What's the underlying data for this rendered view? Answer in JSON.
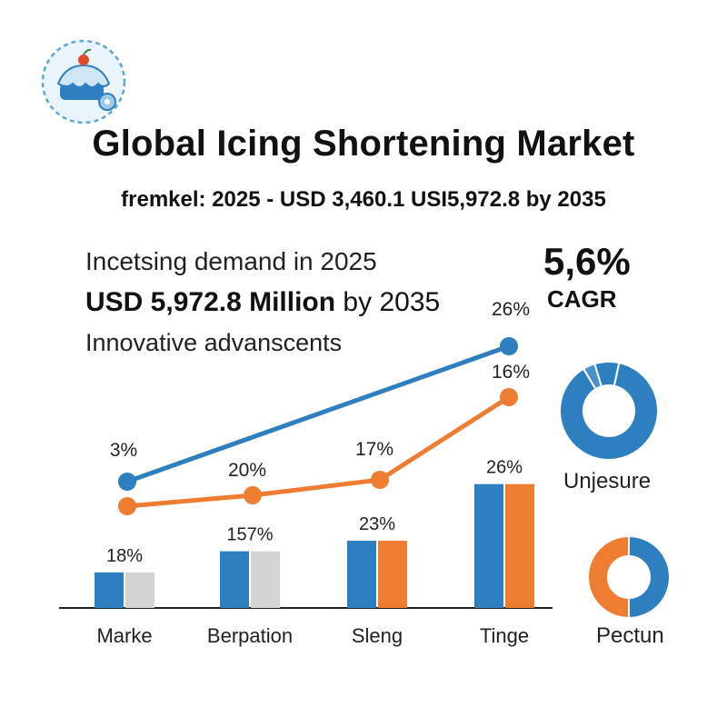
{
  "header": {
    "title": "Global Icing Shortening Market",
    "subtitle": "fremkel: 2025 - USD 3,460.1 USI5,972.8 by 2035"
  },
  "highlights": {
    "line1": "Incetsing demand in 2025",
    "line2_bold": "USD 5,972.8 Million",
    "line2_rest": " by 2035",
    "line3": "Innovative advanscents"
  },
  "cagr": {
    "value": "5,6%",
    "label": "CAGR"
  },
  "logo": {
    "icon": "cake-icon"
  },
  "colors": {
    "blue": "#2E7FBF",
    "orange": "#EE7D32",
    "gray": "#D4D4D4",
    "axis": "#222222"
  },
  "chart_data": [
    {
      "type": "bar",
      "categories": [
        "Marke",
        "Berpation",
        "Sleng",
        "Tinge"
      ],
      "series": [
        {
          "values": [
            18,
            157,
            23,
            26
          ]
        },
        {
          "values": [
            18,
            157,
            23,
            26
          ]
        }
      ],
      "data_labels": [
        "18%",
        "157%",
        "23%",
        "26%"
      ],
      "relative_heights": [
        0.27,
        0.43,
        0.51,
        0.94
      ]
    },
    {
      "type": "line",
      "series": [
        {
          "values": [
            3,
            26
          ],
          "labels": [
            "3%",
            "26%"
          ]
        },
        {
          "values": [
            20,
            17,
            16
          ],
          "labels": [
            "20%",
            "17%",
            "16%"
          ]
        }
      ]
    },
    {
      "type": "pie",
      "label": "Unjesure",
      "slices": [
        {
          "value": 88
        },
        {
          "value": 4
        },
        {
          "value": 8
        }
      ]
    },
    {
      "type": "pie",
      "label": "Pectun",
      "slices": [
        {
          "value": 50
        },
        {
          "value": 50
        }
      ]
    }
  ]
}
